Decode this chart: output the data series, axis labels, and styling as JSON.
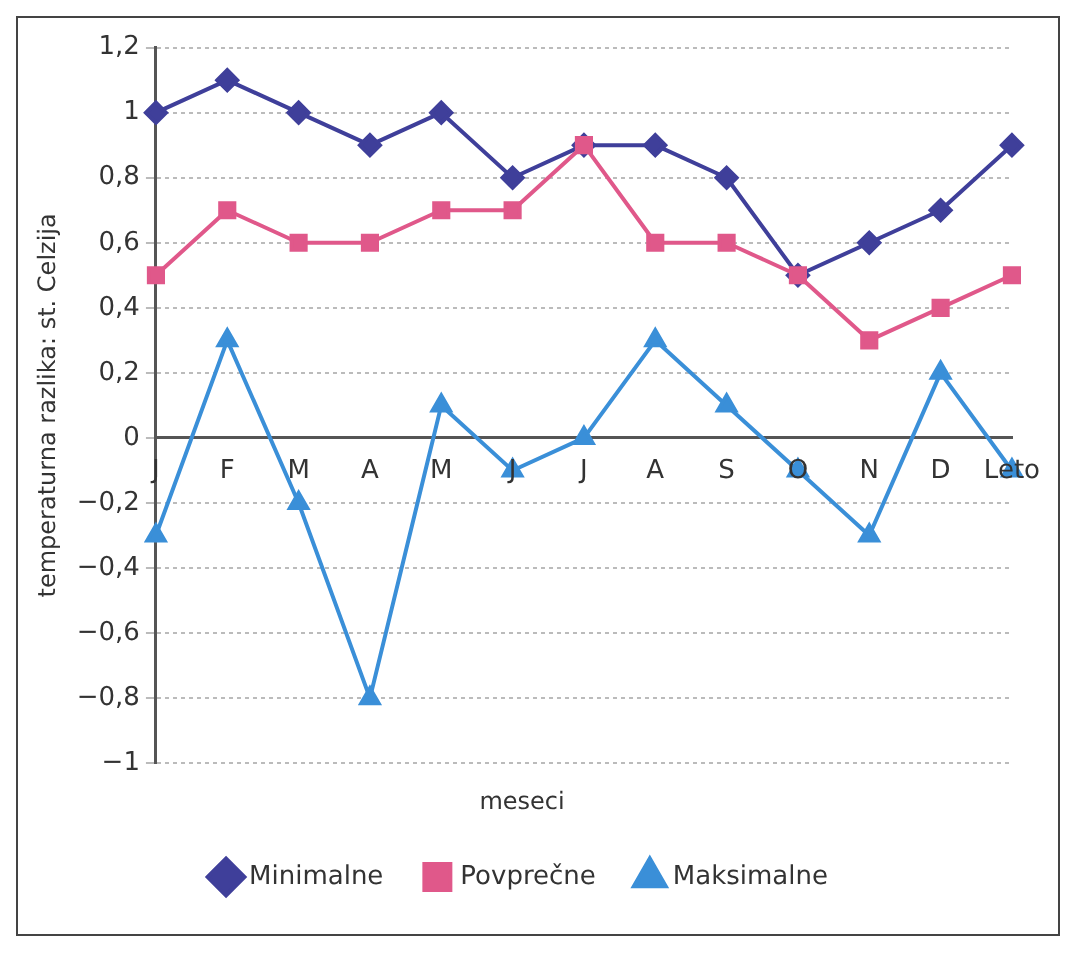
{
  "chart_data": {
    "type": "line",
    "xlabel": "meseci",
    "ylabel": "temperaturna razlika: st. Celzija",
    "categories": [
      "J",
      "F",
      "M",
      "A",
      "M",
      "J",
      "J",
      "A",
      "S",
      "O",
      "N",
      "D",
      "Leto"
    ],
    "series": [
      {
        "name": "Minimalne",
        "color": "#3f3f9a",
        "marker": "diamond",
        "values": [
          1,
          1.1,
          1,
          0.9,
          1,
          0.8,
          0.9,
          0.9,
          0.8,
          0.5,
          0.6,
          0.7,
          0.9
        ]
      },
      {
        "name": "Povprečne",
        "color": "#e0588a",
        "marker": "square",
        "values": [
          0.5,
          0.7,
          0.6,
          0.6,
          0.7,
          0.7,
          0.9,
          0.6,
          0.6,
          0.5,
          0.3,
          0.4,
          0.5
        ]
      },
      {
        "name": "Maksimalne",
        "color": "#3a8fd8",
        "marker": "triangle",
        "values": [
          -0.3,
          0.3,
          -0.2,
          -0.8,
          0.1,
          -0.1,
          0,
          0.3,
          0.1,
          -0.1,
          -0.3,
          0.2,
          -0.1
        ]
      }
    ],
    "ylim": [
      -1,
      1.2
    ],
    "yticks": [
      {
        "value": -1,
        "label": "−1"
      },
      {
        "value": -0.8,
        "label": "−0,8"
      },
      {
        "value": -0.6,
        "label": "−0,6"
      },
      {
        "value": -0.4,
        "label": "−0,4"
      },
      {
        "value": -0.2,
        "label": "−0,2"
      },
      0,
      {
        "value": 0.2,
        "label": "0,2"
      },
      {
        "value": 0.4,
        "label": "0,4"
      },
      {
        "value": 0.6,
        "label": "0,6"
      },
      {
        "value": 0.8,
        "label": "0,8"
      },
      1,
      {
        "value": 1.2,
        "label": "1,2"
      }
    ],
    "grid": "y",
    "legend": "bottom",
    "line_style": "solid"
  }
}
